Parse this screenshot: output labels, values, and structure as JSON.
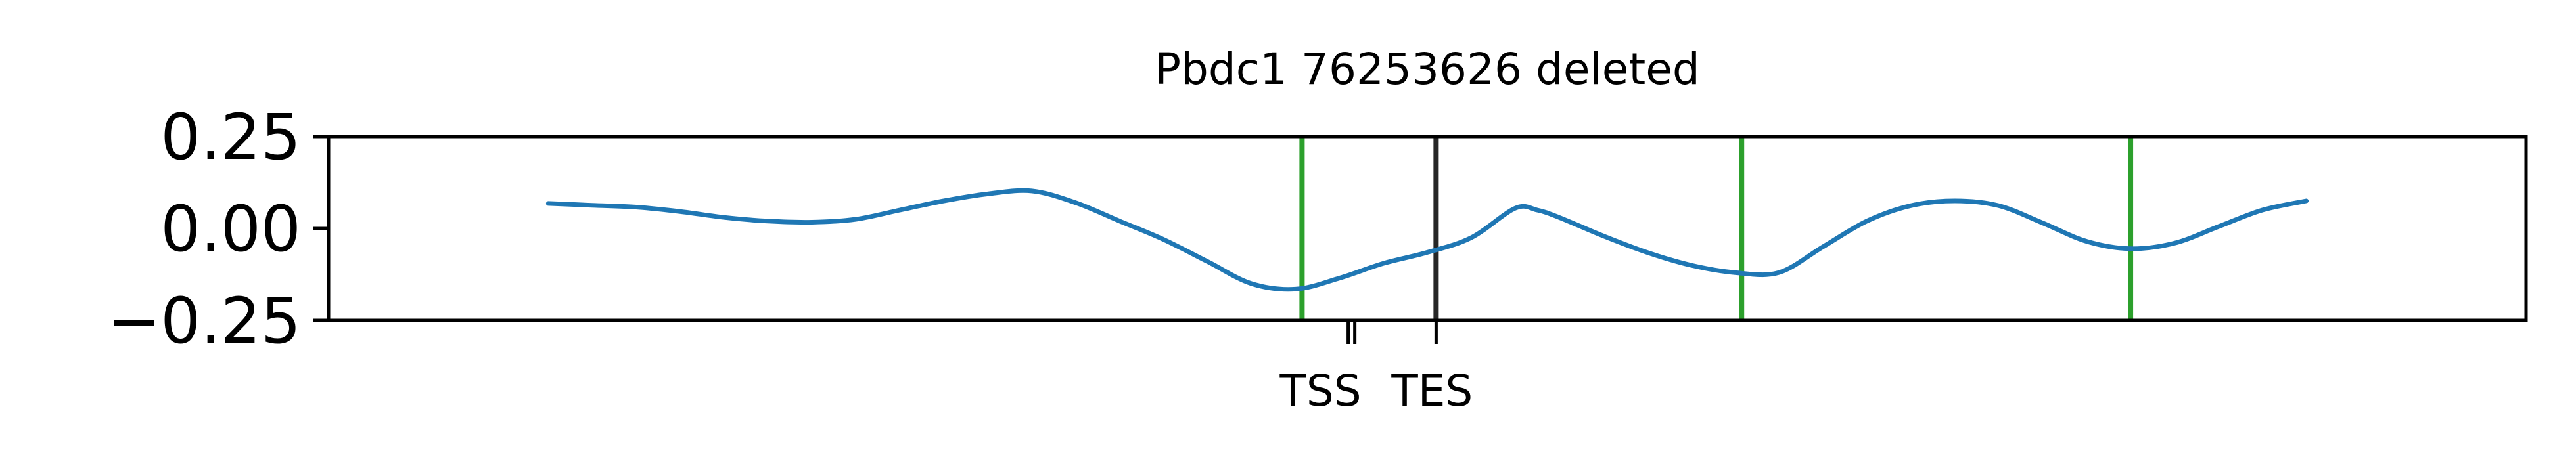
{
  "chart_data": {
    "type": "line",
    "title": "Pbdc1 76253626 deleted",
    "xlabel": "",
    "ylabel": "",
    "xlim": [
      0,
      100
    ],
    "ylim": [
      -0.25,
      0.25
    ],
    "yticks": [
      {
        "value": 0.25,
        "label": "0.25"
      },
      {
        "value": 0.0,
        "label": "0.00"
      },
      {
        "value": -0.25,
        "label": "−0.25"
      }
    ],
    "xticks": [
      {
        "value": 46.4,
        "label": ""
      },
      {
        "value": 46.7,
        "label": "TSS"
      },
      {
        "value": 50.4,
        "label": "TES"
      }
    ],
    "grid": false,
    "series": [
      {
        "color": "#1f77b4",
        "x": [
          10,
          12,
          14,
          16,
          18,
          20,
          22,
          24,
          26,
          28,
          30,
          32,
          34,
          36,
          38,
          40,
          42,
          44,
          46,
          48,
          50,
          52,
          54,
          55,
          56,
          58,
          60,
          62,
          64,
          66,
          68,
          70,
          72,
          74,
          76,
          78,
          80,
          82,
          84,
          86,
          88,
          90
        ],
        "values": [
          0.068,
          0.063,
          0.058,
          0.046,
          0.03,
          0.02,
          0.017,
          0.025,
          0.05,
          0.075,
          0.094,
          0.102,
          0.07,
          0.02,
          -0.03,
          -0.09,
          -0.15,
          -0.165,
          -0.135,
          -0.095,
          -0.065,
          -0.025,
          0.055,
          0.05,
          0.03,
          -0.02,
          -0.065,
          -0.1,
          -0.12,
          -0.12,
          -0.05,
          0.02,
          0.062,
          0.075,
          0.062,
          0.015,
          -0.035,
          -0.055,
          -0.04,
          0.005,
          0.05,
          0.075
        ]
      }
    ],
    "vlines": [
      {
        "x": 44.3,
        "color": "#2ca02c"
      },
      {
        "x": 50.4,
        "color": "#262626"
      },
      {
        "x": 64.3,
        "color": "#2ca02c"
      },
      {
        "x": 82.0,
        "color": "#2ca02c"
      }
    ]
  }
}
